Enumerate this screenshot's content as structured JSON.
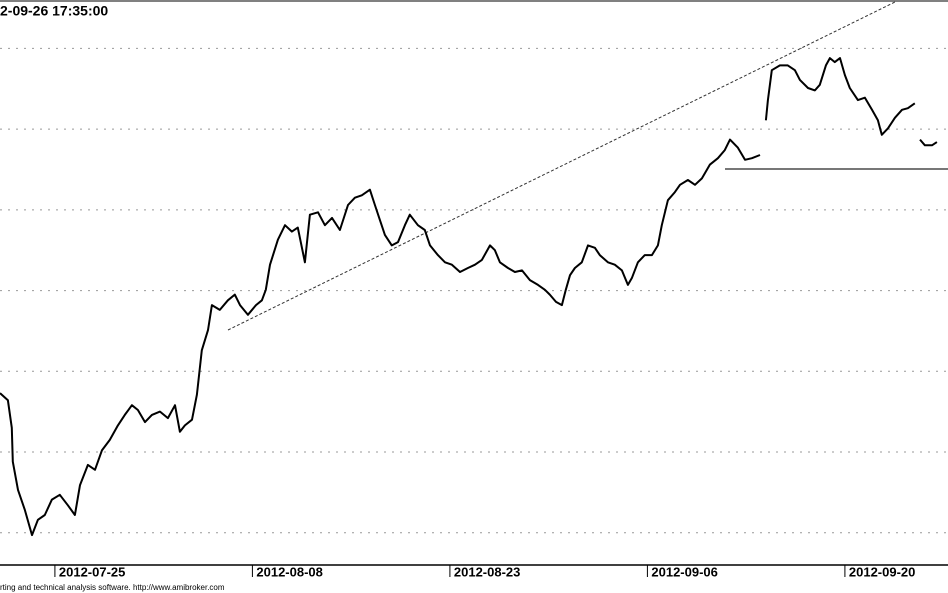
{
  "chart_data": {
    "type": "line",
    "title": "2-09-26 17:35:00",
    "footer": "rting and technical analysis software. http://www.amibroker.com",
    "x": [
      -2.78,
      -2.38,
      -2.18,
      -2.13,
      -1.87,
      -1.52,
      -1.16,
      -0.86,
      -0.51,
      -0.15,
      0.25,
      0.66,
      1.01,
      1.27,
      1.67,
      2.03,
      2.38,
      2.78,
      3.19,
      3.54,
      3.9,
      4.2,
      4.56,
      4.91,
      5.32,
      5.72,
      6.08,
      6.33,
      6.58,
      6.94,
      7.19,
      7.44,
      7.75,
      7.95,
      8.35,
      8.76,
      9.11,
      9.37,
      9.77,
      10.18,
      10.48,
      10.68,
      10.89,
      11.29,
      11.65,
      12.0,
      12.3,
      12.66,
      12.91,
      13.32,
      13.67,
      14.03,
      14.43,
      14.84,
      15.19,
      15.54,
      15.95,
      16.2,
      16.46,
      16.71,
      17.06,
      17.37,
      17.72,
      17.97,
      18.38,
      18.73,
      18.99,
      19.39,
      19.75,
      20.1,
      20.51,
      20.91,
      21.27,
      21.62,
      22.03,
      22.28,
      22.53,
      22.94,
      23.29,
      23.65,
      24.05,
      24.46,
      24.81,
      25.06,
      25.37,
      25.67,
      25.87,
      26.08,
      26.33,
      26.68,
      26.99,
      27.34,
      27.59,
      28.0,
      28.35,
      28.71,
      29.01,
      29.22,
      29.52,
      29.87,
      30.23,
      30.53,
      30.73,
      31.04,
      31.39,
      31.65,
      32.05,
      32.41,
      32.76,
      33.16,
      33.57,
      33.92,
      34.18,
      34.58,
      34.94,
      35.29,
      35.7,
      null,
      36.0,
      36.1,
      36.3,
      36.71,
      37.11,
      37.47,
      37.72,
      38.13,
      38.48,
      38.73,
      39.04,
      39.24,
      39.49,
      39.75,
      40.0,
      40.25,
      40.66,
      41.01,
      41.37,
      41.67,
      41.87,
      42.18,
      42.53,
      42.89,
      43.19,
      43.54,
      null,
      43.8,
      44.05,
      44.41,
      44.66
    ],
    "series": [
      {
        "color": "#000000",
        "values": [
          2.73,
          2.64,
          2.3,
          1.88,
          1.53,
          1.28,
          0.97,
          1.16,
          1.22,
          1.41,
          1.47,
          1.34,
          1.22,
          1.59,
          1.84,
          1.78,
          2.02,
          2.15,
          2.33,
          2.46,
          2.58,
          2.52,
          2.37,
          2.46,
          2.5,
          2.42,
          2.58,
          2.25,
          2.33,
          2.4,
          2.71,
          3.26,
          3.51,
          3.82,
          3.76,
          3.88,
          3.95,
          3.82,
          3.7,
          3.82,
          3.88,
          4.01,
          4.32,
          4.63,
          4.81,
          4.73,
          4.78,
          4.35,
          4.94,
          4.97,
          4.81,
          4.9,
          4.75,
          5.06,
          5.15,
          5.18,
          5.25,
          5.06,
          4.87,
          4.69,
          4.56,
          4.6,
          4.81,
          4.94,
          4.81,
          4.75,
          4.56,
          4.44,
          4.35,
          4.32,
          4.23,
          4.28,
          4.32,
          4.38,
          4.56,
          4.5,
          4.35,
          4.28,
          4.23,
          4.25,
          4.13,
          4.07,
          4.01,
          3.95,
          3.86,
          3.82,
          4.01,
          4.19,
          4.28,
          4.35,
          4.56,
          4.53,
          4.44,
          4.35,
          4.32,
          4.25,
          4.07,
          4.16,
          4.35,
          4.44,
          4.44,
          4.56,
          4.81,
          5.12,
          5.22,
          5.31,
          5.37,
          5.31,
          5.39,
          5.56,
          5.64,
          5.74,
          5.87,
          5.77,
          5.62,
          5.64,
          5.68,
          null,
          6.11,
          6.36,
          6.73,
          6.79,
          6.79,
          6.73,
          6.61,
          6.51,
          6.48,
          6.55,
          6.79,
          6.88,
          6.83,
          6.88,
          6.67,
          6.51,
          6.36,
          6.39,
          6.24,
          6.11,
          5.93,
          6.01,
          6.14,
          6.24,
          6.26,
          6.32,
          null,
          5.87,
          5.8,
          5.8,
          5.84
        ]
      }
    ],
    "xlim": [
      -2.78,
      45.22
    ],
    "xticks": [
      {
        "value": 0,
        "label": "2012-07-25"
      },
      {
        "value": 10,
        "label": "2012-08-08"
      },
      {
        "value": 20,
        "label": "2012-08-23"
      },
      {
        "value": 30,
        "label": "2012-09-06"
      },
      {
        "value": 40,
        "label": "2012-09-20"
      }
    ],
    "ylim": [
      0.6,
      7.6
    ],
    "yticks": [
      1,
      2,
      3,
      4,
      5,
      6,
      7
    ],
    "grid": true
  }
}
